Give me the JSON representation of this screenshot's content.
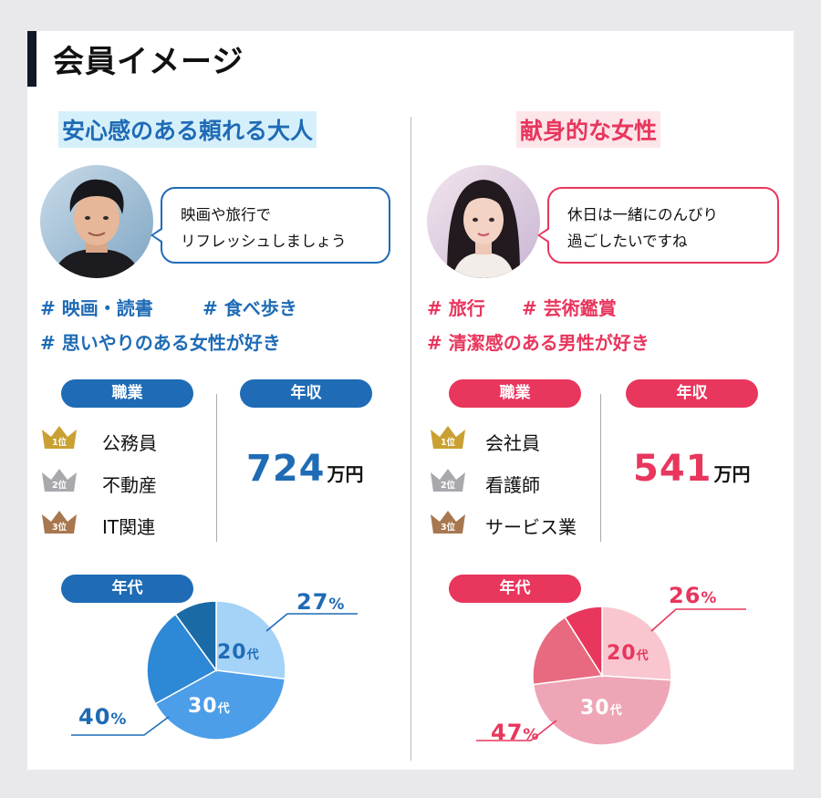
{
  "page_title": "会員イメージ",
  "colors": {
    "male_accent": "#1f6bb5",
    "female_accent": "#e8365d",
    "male_heading_bg": "#d6f0fb",
    "female_heading_bg": "#fde6ea",
    "gold": "#c9a032",
    "silver": "#a9a9ad",
    "bronze": "#a8774f"
  },
  "male": {
    "heading": "安心感のある頼れる大人",
    "speech_line1": "映画や旅行で",
    "speech_line2": "リフレッシュしましょう",
    "tags": {
      "line1_a": "# 映画・読書",
      "line1_b": "# 食べ歩き",
      "line2": "# 思いやりのある女性が好き"
    },
    "job_label": "職業",
    "income_label": "年収",
    "age_label": "年代",
    "ranks": [
      {
        "badge": "1位",
        "label": "公務員"
      },
      {
        "badge": "2位",
        "label": "不動産"
      },
      {
        "badge": "3位",
        "label": "IT関連"
      }
    ],
    "income_value": "724",
    "income_unit": "万円",
    "age_chart": {
      "type": "pie",
      "slices": [
        {
          "label_num": "20",
          "label_suffix": "代",
          "percent": 27,
          "color": "#a5d3f7",
          "text_color": "#1f6bb5",
          "pct_text": "27",
          "pct_sym": "%"
        },
        {
          "label_num": "30",
          "label_suffix": "代",
          "percent": 40,
          "color": "#4c9ee8",
          "text_color": "#ffffff",
          "pct_text": "40",
          "pct_sym": "%"
        },
        {
          "percent": 23,
          "color": "#2d88d6"
        },
        {
          "percent": 10,
          "color": "#1a6aa6"
        }
      ]
    }
  },
  "female": {
    "heading": "献身的な女性",
    "speech_line1": "休日は一緒にのんびり",
    "speech_line2": "過ごしたいですね",
    "tags": {
      "line1_a": "# 旅行",
      "line1_b": "# 芸術鑑賞",
      "line2": "# 清潔感のある男性が好き"
    },
    "job_label": "職業",
    "income_label": "年収",
    "age_label": "年代",
    "ranks": [
      {
        "badge": "1位",
        "label": "会社員"
      },
      {
        "badge": "2位",
        "label": "看護師"
      },
      {
        "badge": "3位",
        "label": "サービス業"
      }
    ],
    "income_value": "541",
    "income_unit": "万円",
    "age_chart": {
      "type": "pie",
      "slices": [
        {
          "label_num": "20",
          "label_suffix": "代",
          "percent": 26,
          "color": "#f9c6cf",
          "text_color": "#e8365d",
          "pct_text": "26",
          "pct_sym": "%"
        },
        {
          "label_num": "30",
          "label_suffix": "代",
          "percent": 47,
          "color": "#eea6b6",
          "text_color": "#ffffff",
          "pct_text": "47",
          "pct_sym": "%"
        },
        {
          "percent": 18,
          "color": "#e86a80"
        },
        {
          "percent": 9,
          "color": "#e8365d"
        }
      ]
    }
  }
}
